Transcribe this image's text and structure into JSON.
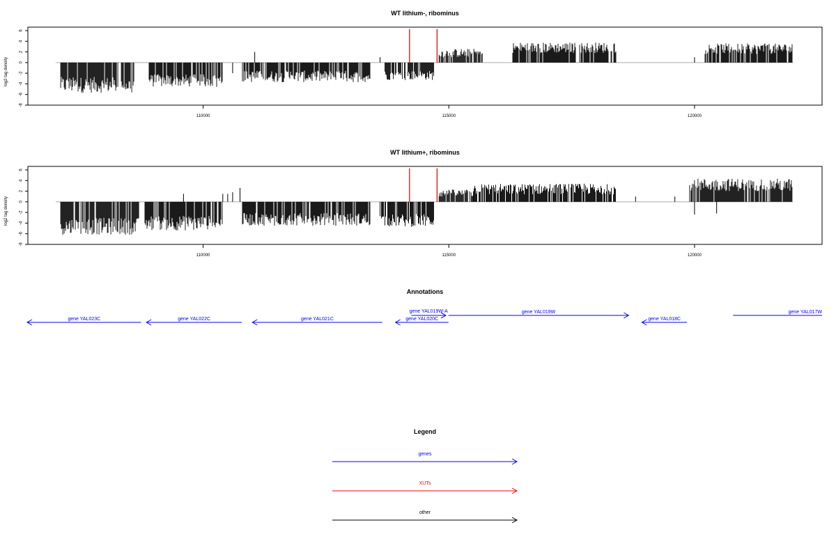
{
  "chart_data": [
    {
      "type": "bar",
      "title": "WT lithium-, ribominus",
      "ylabel": "log2 tag density",
      "xlim": [
        107000,
        122000
      ],
      "ylim": [
        -8,
        6
      ],
      "x_ticks": [
        110000,
        115000,
        120000
      ],
      "y_ticks": [
        -8,
        -6,
        -4,
        -2,
        0,
        2,
        4,
        6
      ],
      "grid": false,
      "baseline_segments": [
        [
          107000,
          122000
        ]
      ],
      "negative_blocks": [
        {
          "start": 107100,
          "end": 108600,
          "mean": -4.2,
          "spread": 1.5
        },
        {
          "start": 108900,
          "end": 110400,
          "mean": -3.4,
          "spread": 1.2
        },
        {
          "start": 110800,
          "end": 113400,
          "mean": -2.6,
          "spread": 1.1
        },
        {
          "start": 113700,
          "end": 114700,
          "mean": -2.4,
          "spread": 0.9
        }
      ],
      "positive_blocks": [
        {
          "start": 114800,
          "end": 115700,
          "mean": 1.8,
          "spread": 0.8
        },
        {
          "start": 116300,
          "end": 118400,
          "mean": 2.8,
          "spread": 1.0
        },
        {
          "start": 120200,
          "end": 122000,
          "mean": 2.6,
          "spread": 1.0
        }
      ],
      "isolated_values": [
        [
          110600,
          -2.0
        ],
        [
          111050,
          2.0
        ],
        [
          113600,
          1.0
        ],
        [
          120000,
          1.0
        ]
      ],
      "highlight_marks": [
        {
          "x": 114200,
          "y": 6.3,
          "color": "#cc0000"
        },
        {
          "x": 114760,
          "y": 6.3,
          "color": "#cc0000"
        }
      ]
    },
    {
      "type": "bar",
      "title": "WT lithium+, ribominus",
      "ylabel": "log2 tag density",
      "xlim": [
        107000,
        122000
      ],
      "ylim": [
        -8,
        6
      ],
      "x_ticks": [
        110000,
        115000,
        120000
      ],
      "y_ticks": [
        -8,
        -6,
        -4,
        -2,
        0,
        2,
        4,
        6
      ],
      "grid": false,
      "baseline_segments": [
        [
          107000,
          122000
        ]
      ],
      "negative_blocks": [
        {
          "start": 107100,
          "end": 108700,
          "mean": -4.6,
          "spread": 1.6
        },
        {
          "start": 108800,
          "end": 110400,
          "mean": -4.0,
          "spread": 1.4
        },
        {
          "start": 110800,
          "end": 113400,
          "mean": -3.3,
          "spread": 1.2
        },
        {
          "start": 113600,
          "end": 114700,
          "mean": -3.5,
          "spread": 1.2
        }
      ],
      "positive_blocks": [
        {
          "start": 114800,
          "end": 115500,
          "mean": 1.6,
          "spread": 0.7
        },
        {
          "start": 115500,
          "end": 118400,
          "mean": 2.4,
          "spread": 1.0
        },
        {
          "start": 119900,
          "end": 122000,
          "mean": 3.2,
          "spread": 1.2
        }
      ],
      "isolated_values": [
        [
          109600,
          1.5
        ],
        [
          110400,
          1.5
        ],
        [
          110500,
          1.5
        ],
        [
          110600,
          1.8
        ],
        [
          110750,
          2.6
        ],
        [
          118800,
          1.0
        ],
        [
          119600,
          1.0
        ],
        [
          120000,
          -2.4
        ],
        [
          120450,
          -2.2
        ]
      ],
      "highlight_marks": [
        {
          "x": 114200,
          "y": 6.3,
          "color": "#cc0000"
        },
        {
          "x": 114760,
          "y": 6.3,
          "color": "#cc0000"
        }
      ]
    }
  ],
  "annotations": {
    "title": "Annotations",
    "genes": [
      {
        "label": "gene YAL023C",
        "start": 107000,
        "end": 109150,
        "strand": "-",
        "row": 2
      },
      {
        "label": "gene YAL022C",
        "start": 109250,
        "end": 111050,
        "strand": "-",
        "row": 2
      },
      {
        "label": "gene YAL021C",
        "start": 111250,
        "end": 113700,
        "strand": "-",
        "row": 2
      },
      {
        "label": "gene YAL020C",
        "start": 113950,
        "end": 114950,
        "strand": "-",
        "row": 2
      },
      {
        "label": "gene YAL019W-A",
        "start": 114250,
        "end": 114900,
        "strand": "+",
        "row": 0
      },
      {
        "label": "gene YAL019W",
        "start": 114950,
        "end": 118350,
        "strand": "+",
        "row": 1
      },
      {
        "label": "gene YAL018C",
        "start": 118600,
        "end": 119450,
        "strand": "-",
        "row": 2
      },
      {
        "label": "gene YAL017W",
        "start": 120320,
        "end": 122000,
        "strand": "+",
        "row": 1
      }
    ]
  },
  "legend": {
    "title": "Legend",
    "items": [
      {
        "label": "genes",
        "color": "#0000ff"
      },
      {
        "label": "XUTs",
        "color": "#ff0000"
      },
      {
        "label": "other",
        "color": "#000000"
      }
    ]
  }
}
